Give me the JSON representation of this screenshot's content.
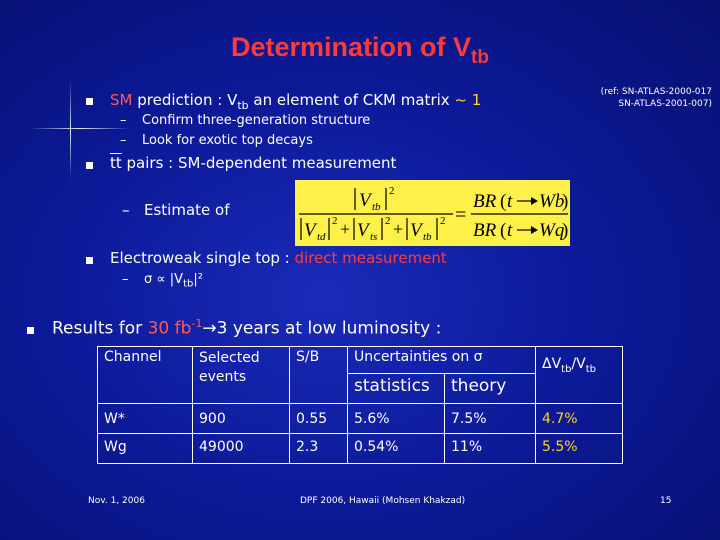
{
  "title": {
    "main": "Determination of V",
    "sub": "tb"
  },
  "ref": {
    "line1": "(ref: SN-ATLAS-2000-017",
    "line2": "SN-ATLAS-2001-007)"
  },
  "bullet1": {
    "prefix": "SM",
    "text_a": " prediction : V",
    "sub": "tb",
    "text_b": " an element of CKM matrix ",
    "approx": "~ 1"
  },
  "sub1": {
    "a": "Confirm three-generation structure",
    "b": "Look for exotic top decays"
  },
  "bullet2": {
    "tt": "tt",
    "text": " pairs : SM-dependent measurement"
  },
  "estimate": {
    "text": "Estimate of"
  },
  "bullet3": {
    "text": "Electroweak single top : ",
    "hl": "direct measurement"
  },
  "sigma_line": {
    "a": "σ ∝ |V",
    "sub": "tb",
    "b": "|²"
  },
  "results": {
    "a": "Results for ",
    "hl": "30 fb",
    "sup": "-1",
    "arrow": "→",
    "b": "3 years at low luminosity :"
  },
  "table": {
    "h_channel": "Channel",
    "h_selected": "Selected events",
    "h_sb": "S/B",
    "h_unc": "Uncertainties on σ",
    "h_stat": "statistics",
    "h_theory": "theory",
    "h_dv_a": "ΔV",
    "h_dv_sub1": "tb",
    "h_dv_b": "/V",
    "h_dv_sub2": "tb",
    "rows": [
      {
        "channel": "W*",
        "events": "900",
        "sb": "0.55",
        "stat": "5.6%",
        "theory": "7.5%",
        "dv": "4.7%"
      },
      {
        "channel": "Wg",
        "events": "49000",
        "sb": "2.3",
        "stat": "0.54%",
        "theory": "11%",
        "dv": "5.5%"
      }
    ]
  },
  "footer": {
    "date": "Nov. 1, 2006",
    "conf": "DPF 2006, Hawaii (Mohsen Khakzad)",
    "page": "15"
  },
  "formula": {
    "vtb": "V",
    "tb": "tb",
    "td": "td",
    "ts": "ts",
    "br": "BR",
    "t": "t",
    "wb": "Wb",
    "wq": "Wq",
    "eq": "=",
    "plus": "+",
    "two": "2"
  }
}
